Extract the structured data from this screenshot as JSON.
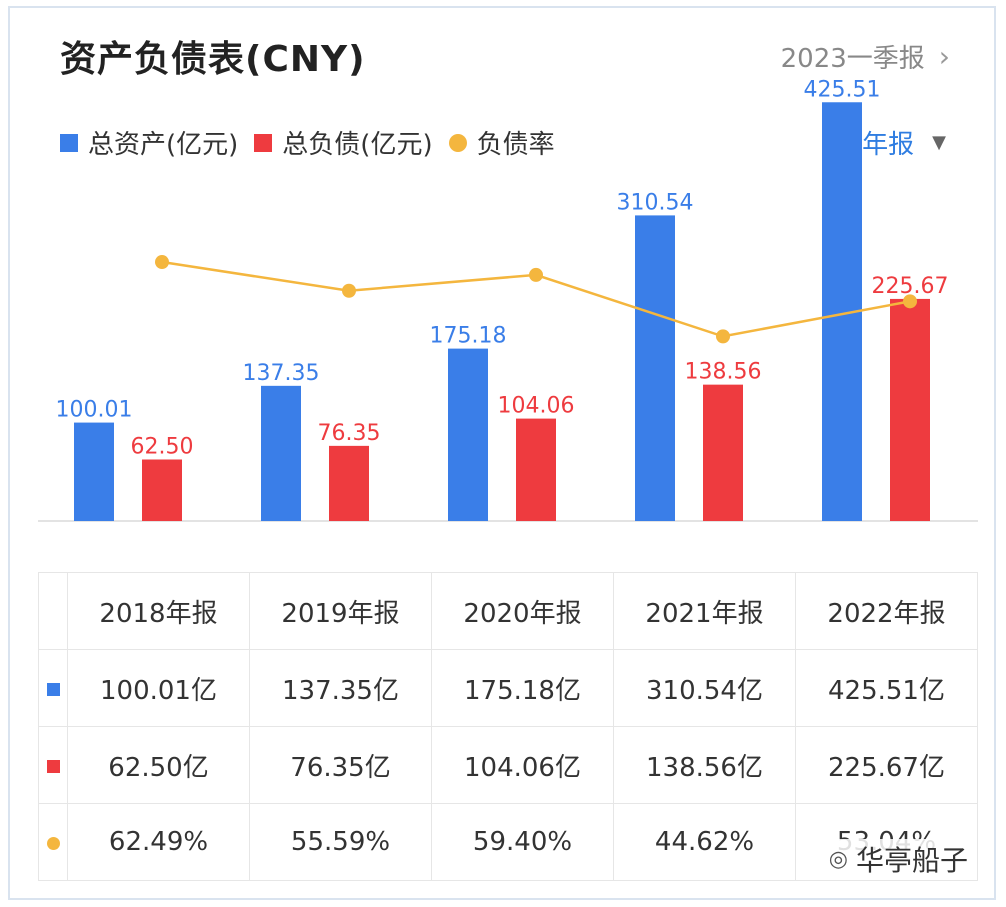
{
  "header": {
    "title": "资产负债表(CNY)",
    "period": "2023一季报"
  },
  "controls": {
    "frequency": "年报"
  },
  "colors": {
    "assets": "#3a7ee8",
    "liabilities": "#ee3b3f",
    "ratio": "#f4b63e"
  },
  "chart_data": {
    "type": "bar",
    "categories": [
      "2018年报",
      "2019年报",
      "2020年报",
      "2021年报",
      "2022年报"
    ],
    "series": [
      {
        "name": "总资产(亿元)",
        "type": "bar",
        "values": [
          100.01,
          137.35,
          175.18,
          310.54,
          425.51
        ],
        "labels": [
          "100.01",
          "137.35",
          "175.18",
          "310.54",
          "425.51"
        ]
      },
      {
        "name": "总负债(亿元)",
        "type": "bar",
        "values": [
          62.5,
          76.35,
          104.06,
          138.56,
          225.67
        ],
        "labels": [
          "62.50",
          "76.35",
          "104.06",
          "138.56",
          "225.67"
        ]
      },
      {
        "name": "负债率",
        "type": "line",
        "values": [
          62.49,
          55.59,
          59.4,
          44.62,
          53.04
        ]
      }
    ],
    "ylim": [
      0,
      440
    ],
    "ratio_ylim": [
      0,
      100
    ],
    "legend": "top-left"
  },
  "table": {
    "headers": [
      "2018年报",
      "2019年报",
      "2020年报",
      "2021年报",
      "2022年报"
    ],
    "rows": [
      {
        "series": "assets",
        "cells": [
          "100.01亿",
          "137.35亿",
          "175.18亿",
          "310.54亿",
          "425.51亿"
        ]
      },
      {
        "series": "liabilities",
        "cells": [
          "62.50亿",
          "76.35亿",
          "104.06亿",
          "138.56亿",
          "225.67亿"
        ]
      },
      {
        "series": "ratio",
        "cells": [
          "62.49%",
          "55.59%",
          "59.40%",
          "44.62%",
          "53.04%"
        ]
      }
    ]
  },
  "watermark": {
    "text": "华亭船子"
  }
}
